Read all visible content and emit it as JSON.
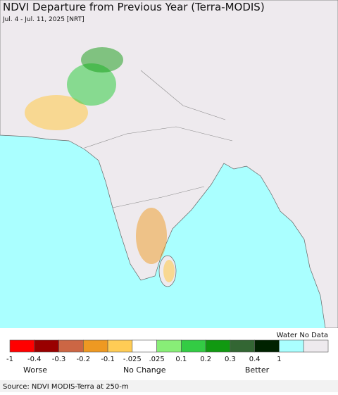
{
  "header": {
    "title": "NDVI Departure from Previous Year (Terra-MODIS)",
    "subtitle": "Jul. 4 - Jul. 11, 2025 [NRT]"
  },
  "legend": {
    "colors": [
      "#ff0000",
      "#990000",
      "#cc6644",
      "#ee9922",
      "#ffcc55",
      "#ffffff",
      "#88ee77",
      "#33cc44",
      "#119911",
      "#336633",
      "#002200",
      "#aaffff",
      "#eeeaee"
    ],
    "labels": [
      "-1",
      "-0.4",
      "-0.3",
      "-0.2",
      "-0.1",
      "-.025",
      ".025",
      "0.1",
      "0.2",
      "0.3",
      "0.4",
      "1"
    ],
    "water_no_data": "Water No Data",
    "worse": "Worse",
    "no_change": "No Change",
    "better": "Better"
  },
  "footer": {
    "source": "Source: NDVI MODIS-Terra at 250-m"
  }
}
